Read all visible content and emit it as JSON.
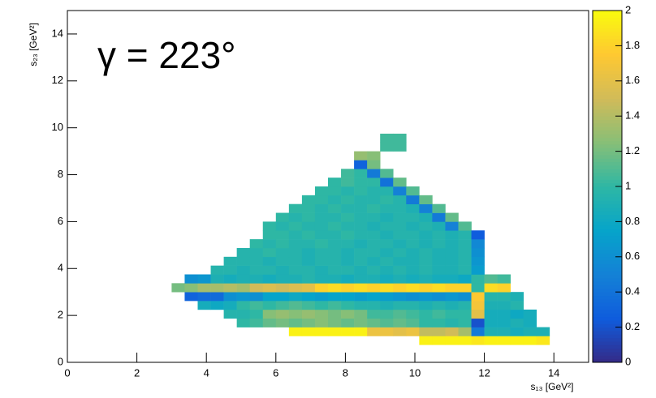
{
  "chart_data": {
    "type": "heatmap",
    "annotation": "γ = 223°",
    "xlabel": "s₁₃ [GeV²]",
    "ylabel": "s₂₃ [GeV²]",
    "xlim": [
      0,
      15
    ],
    "xticks": [
      0,
      2,
      4,
      6,
      8,
      10,
      12,
      14
    ],
    "ylim": [
      0,
      15
    ],
    "yticks": [
      0,
      2,
      4,
      6,
      8,
      10,
      12,
      14
    ],
    "zlim": [
      0,
      2
    ],
    "zticks": [
      0,
      0.2,
      0.4,
      0.6,
      0.8,
      1,
      1.2,
      1.4,
      1.6,
      1.8,
      2
    ],
    "colormap": [
      "#352a87",
      "#0f5cdd",
      "#1481d6",
      "#06a4ca",
      "#2eb7a4",
      "#87bf77",
      "#d1bb59",
      "#fec832",
      "#f9fb0e"
    ],
    "bin_size": [
      0.375,
      0.375
    ],
    "rows": [
      {
        "y": 0.75,
        "x": 10.125,
        "values": [
          1.95,
          1.95,
          1.95,
          1.95,
          1.9,
          1.95,
          1.95,
          1.95,
          1.95,
          1.9
        ]
      },
      {
        "y": 1.125,
        "x": 6.375,
        "values": [
          1.95,
          1.95,
          1.95,
          1.95,
          1.95,
          1.95,
          1.65,
          1.65,
          1.6,
          1.65,
          1.45,
          1.45,
          1.5,
          1.35,
          0.45,
          0.9,
          0.9,
          0.85,
          0.9,
          0.9
        ]
      },
      {
        "y": 1.5,
        "x": 4.875,
        "values": [
          1.0,
          1.05,
          1.15,
          1.2,
          1.15,
          1.2,
          1.25,
          1.2,
          1.15,
          1.2,
          1.15,
          1.1,
          1.15,
          1.1,
          1.0,
          1.0,
          0.95,
          1.0,
          0.2,
          0.85,
          0.85,
          0.9,
          0.85
        ]
      },
      {
        "y": 1.875,
        "x": 4.5,
        "values": [
          0.95,
          0.95,
          1.0,
          1.25,
          1.3,
          1.25,
          1.3,
          1.25,
          1.2,
          1.25,
          1.2,
          1.05,
          1.05,
          1.1,
          1.05,
          1.0,
          1.05,
          1.0,
          1.0,
          1.6,
          0.85,
          0.85,
          0.8,
          0.85
        ]
      },
      {
        "y": 2.25,
        "x": 3.75,
        "values": [
          0.85,
          0.8,
          0.85,
          1.0,
          1.05,
          1.0,
          1.05,
          1.1,
          1.05,
          1.0,
          1.05,
          1.0,
          0.95,
          0.95,
          0.9,
          0.95,
          0.95,
          0.9,
          0.95,
          0.9,
          0.95,
          1.7,
          0.9,
          0.9,
          0.95
        ]
      },
      {
        "y": 2.625,
        "x": 3.375,
        "values": [
          0.3,
          0.35,
          0.35,
          0.6,
          0.65,
          0.6,
          0.75,
          0.75,
          0.8,
          0.75,
          0.7,
          0.75,
          0.75,
          0.7,
          0.75,
          0.7,
          0.65,
          0.6,
          0.65,
          0.6,
          0.65,
          0.6,
          1.75,
          0.95,
          0.95,
          0.9
        ]
      },
      {
        "y": 3.0,
        "x": 3.0,
        "values": [
          1.2,
          1.25,
          1.35,
          1.35,
          1.4,
          1.35,
          1.5,
          1.55,
          1.5,
          1.55,
          1.6,
          1.8,
          1.85,
          1.8,
          1.85,
          1.8,
          1.85,
          1.8,
          1.85,
          1.8,
          1.85,
          1.8,
          1.8,
          1.0,
          1.85,
          1.8
        ]
      },
      {
        "y": 3.375,
        "x": 3.375,
        "values": [
          0.6,
          0.65,
          0.9,
          0.85,
          0.9,
          0.9,
          0.85,
          0.9,
          0.9,
          0.95,
          0.9,
          0.9,
          0.85,
          0.9,
          0.9,
          0.85,
          0.9,
          0.85,
          0.9,
          0.85,
          0.85,
          0.8,
          1.0,
          1.1,
          1.05
        ]
      },
      {
        "y": 3.75,
        "x": 4.125,
        "values": [
          0.95,
          0.95,
          0.9,
          0.95,
          0.95,
          0.9,
          0.95,
          0.95,
          0.9,
          0.95,
          0.95,
          0.9,
          0.95,
          0.9,
          0.95,
          0.9,
          0.95,
          0.9,
          0.9,
          0.95,
          0.7
        ]
      },
      {
        "y": 4.125,
        "x": 4.5,
        "values": [
          0.95,
          0.95,
          0.95,
          0.9,
          0.95,
          0.95,
          0.9,
          0.95,
          0.95,
          0.9,
          0.95,
          0.9,
          0.95,
          0.9,
          0.9,
          0.95,
          0.9,
          0.9,
          0.95,
          0.65
        ]
      },
      {
        "y": 4.5,
        "x": 4.875,
        "values": [
          0.95,
          0.95,
          1.0,
          0.95,
          0.95,
          0.9,
          0.95,
          0.95,
          0.9,
          0.95,
          0.95,
          0.9,
          0.95,
          0.9,
          0.95,
          0.9,
          0.9,
          0.95,
          0.6
        ]
      },
      {
        "y": 4.875,
        "x": 5.25,
        "values": [
          1.0,
          0.95,
          1.0,
          0.95,
          0.95,
          1.0,
          0.95,
          0.95,
          0.9,
          0.95,
          0.95,
          0.9,
          0.95,
          0.9,
          0.95,
          0.9,
          0.95,
          0.55
        ]
      },
      {
        "y": 5.25,
        "x": 5.625,
        "values": [
          1.0,
          1.0,
          0.95,
          1.0,
          0.95,
          0.95,
          1.0,
          0.95,
          0.95,
          0.9,
          0.95,
          0.95,
          0.9,
          0.95,
          0.9,
          0.95,
          0.25
        ]
      },
      {
        "y": 5.625,
        "x": 5.625,
        "values": [
          1.0,
          0.95,
          1.0,
          0.95,
          0.95,
          1.0,
          0.95,
          0.95,
          0.9,
          0.95,
          0.95,
          0.9,
          0.95,
          0.9,
          0.5,
          1.1
        ]
      },
      {
        "y": 6.0,
        "x": 6.0,
        "values": [
          1.0,
          0.95,
          1.0,
          0.95,
          0.95,
          1.0,
          0.95,
          0.95,
          0.9,
          0.95,
          0.95,
          0.9,
          0.45,
          1.15
        ]
      },
      {
        "y": 6.375,
        "x": 6.375,
        "values": [
          1.0,
          1.0,
          0.95,
          1.0,
          0.95,
          0.95,
          1.0,
          0.95,
          0.95,
          0.9,
          0.5,
          1.1
        ]
      },
      {
        "y": 6.75,
        "x": 6.75,
        "values": [
          1.0,
          1.0,
          0.95,
          1.0,
          0.95,
          0.95,
          1.0,
          0.95,
          0.45,
          1.15
        ]
      },
      {
        "y": 7.125,
        "x": 7.125,
        "values": [
          1.0,
          1.0,
          0.95,
          1.0,
          0.95,
          0.95,
          0.5,
          1.1
        ]
      },
      {
        "y": 7.5,
        "x": 7.5,
        "values": [
          1.0,
          1.05,
          1.0,
          1.0,
          0.4,
          1.15
        ]
      },
      {
        "y": 7.875,
        "x": 7.875,
        "values": [
          1.05,
          1.0,
          0.45,
          1.1
        ]
      },
      {
        "y": 8.25,
        "x": 8.25,
        "values": [
          0.3,
          1.2
        ]
      },
      {
        "y": 8.625,
        "x": 8.25,
        "values": [
          1.3,
          1.25
        ]
      },
      {
        "y": 9.0,
        "x": 9.0,
        "values": [
          1.05,
          1.05
        ]
      },
      {
        "y": 9.375,
        "x": 9.0,
        "values": [
          1.05,
          1.05
        ]
      }
    ]
  }
}
